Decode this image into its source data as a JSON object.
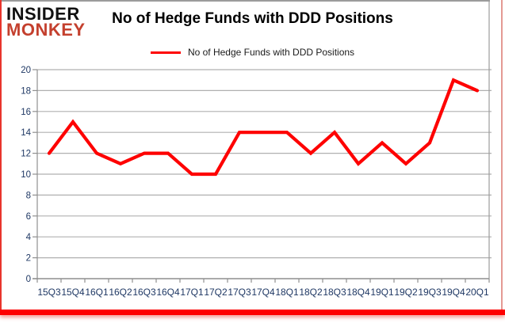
{
  "logo": {
    "line1": "INSIDER",
    "line2": "MONKEY"
  },
  "header": {
    "title": "No of Hedge Funds with DDD Positions"
  },
  "legend": {
    "label": "No of Hedge Funds with DDD Positions"
  },
  "colors": {
    "series": "#fe0000",
    "gridline": "#b0b0b0",
    "axis": "#8f8f8f",
    "axis_text": "#1f3864",
    "logo_red": "#c4402e",
    "frame_red": "#e8352c",
    "frame_bottom_red": "#fe0000",
    "frame_pink": "#e49a94",
    "frame_gray": "#9b9b9b"
  },
  "chart_data": {
    "type": "line",
    "title": "No of Hedge Funds with DDD Positions",
    "series_name": "No of Hedge Funds with DDD Positions",
    "categories": [
      "15Q3",
      "15Q4",
      "16Q1",
      "16Q2",
      "16Q3",
      "16Q4",
      "17Q1",
      "17Q2",
      "17Q3",
      "17Q4",
      "18Q1",
      "18Q2",
      "18Q3",
      "18Q4",
      "19Q1",
      "19Q2",
      "19Q3",
      "19Q4",
      "20Q1"
    ],
    "values": [
      12,
      15,
      12,
      11,
      12,
      12,
      10,
      10,
      14,
      14,
      14,
      12,
      14,
      11,
      13,
      11,
      13,
      19,
      18
    ],
    "xlabel": "",
    "ylabel": "",
    "ylim": [
      0,
      20
    ],
    "ytick_step": 2,
    "grid": true,
    "legend_position": "top"
  }
}
